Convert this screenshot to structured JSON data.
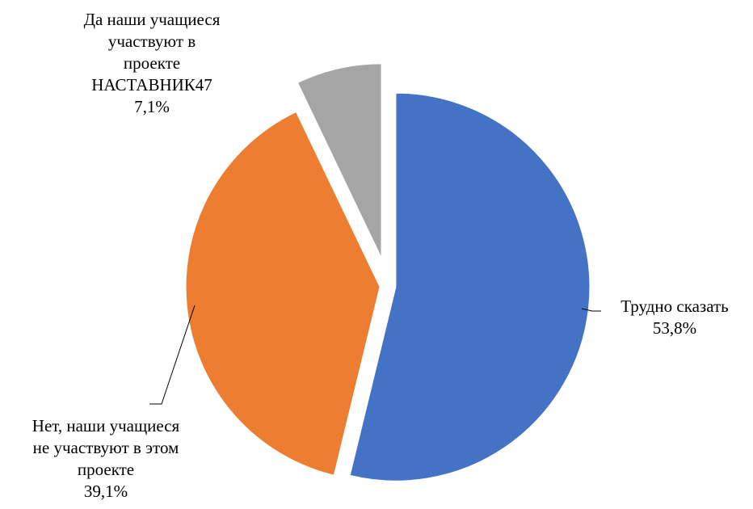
{
  "chart_data": {
    "type": "pie",
    "title": "",
    "slices": [
      {
        "label_lines": [
          "Трудно сказать"
        ],
        "value_label": "53,8%",
        "value": 53.8,
        "color": "#4472C4"
      },
      {
        "label_lines": [
          "Нет, наши учащиеся",
          "не участвуют в этом",
          "проекте"
        ],
        "value_label": "39,1%",
        "value": 39.1,
        "color": "#ED7D31"
      },
      {
        "label_lines": [
          "Да наши учащиеся",
          "участвуют в",
          "проекте",
          "НАСТАВНИК47"
        ],
        "value_label": "7,1%",
        "value": 7.1,
        "color": "#A5A5A5"
      }
    ]
  }
}
